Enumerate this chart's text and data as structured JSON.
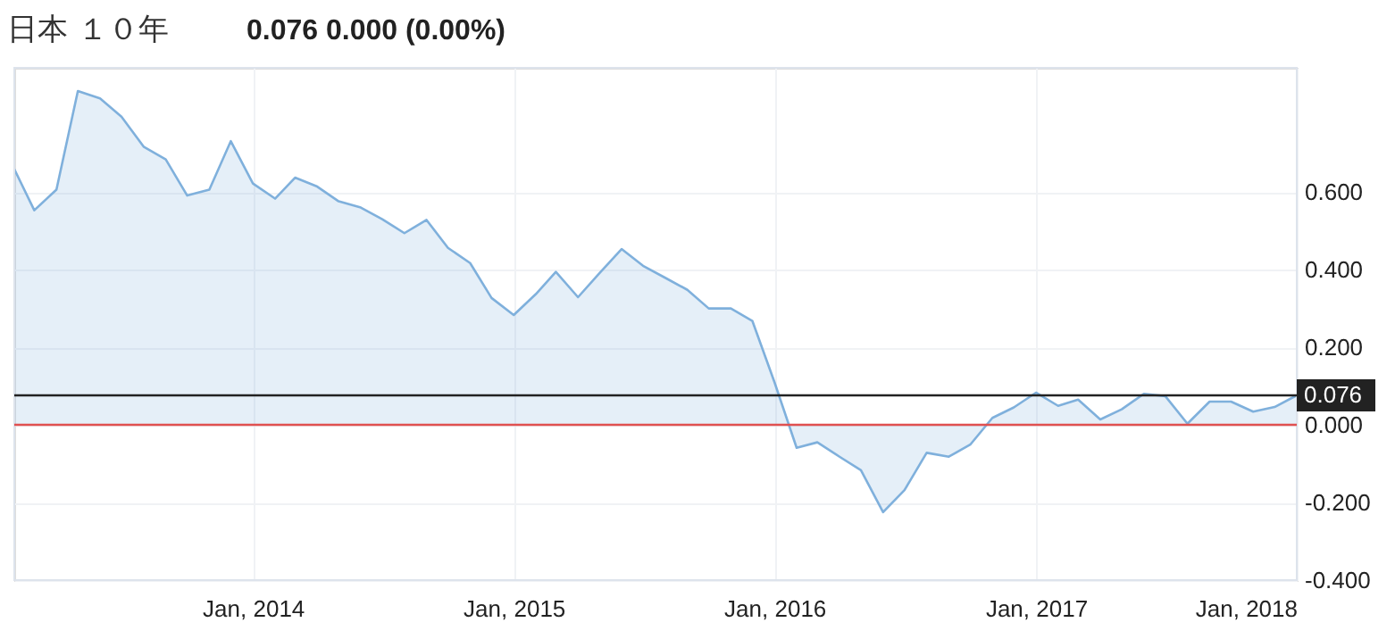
{
  "chart_data": {
    "type": "area",
    "title": "日本 １０年",
    "annotations": [
      "0.076  0.000  (0.00%)"
    ],
    "x": [
      "2013-02",
      "2013-03",
      "2013-04",
      "2013-05",
      "2013-06",
      "2013-07",
      "2013-08",
      "2013-09",
      "2013-10",
      "2013-11",
      "2013-12",
      "2014-01",
      "2014-02",
      "2014-03",
      "2014-04",
      "2014-05",
      "2014-06",
      "2014-07",
      "2014-08",
      "2014-09",
      "2014-10",
      "2014-11",
      "2014-12",
      "2015-01",
      "2015-02",
      "2015-03",
      "2015-04",
      "2015-05",
      "2015-06",
      "2015-07",
      "2015-08",
      "2015-09",
      "2015-10",
      "2015-11",
      "2015-12",
      "2016-01",
      "2016-02",
      "2016-03",
      "2016-04",
      "2016-05",
      "2016-06",
      "2016-07",
      "2016-08",
      "2016-09",
      "2016-10",
      "2016-11",
      "2016-12",
      "2017-01",
      "2017-02",
      "2017-03",
      "2017-04",
      "2017-05",
      "2017-06",
      "2017-07",
      "2017-08",
      "2017-09",
      "2017-10",
      "2017-11",
      "2017-12",
      "2018-01"
    ],
    "series": [
      {
        "color": "#7fb0dc",
        "values": [
          0.659,
          0.553,
          0.606,
          0.86,
          0.841,
          0.794,
          0.717,
          0.684,
          0.591,
          0.606,
          0.731,
          0.622,
          0.583,
          0.637,
          0.614,
          0.576,
          0.56,
          0.53,
          0.494,
          0.528,
          0.456,
          0.417,
          0.327,
          0.283,
          0.337,
          0.394,
          0.329,
          0.391,
          0.453,
          0.41,
          0.379,
          0.348,
          0.3,
          0.3,
          0.268,
          0.11,
          -0.059,
          -0.045,
          -0.082,
          -0.117,
          -0.225,
          -0.168,
          -0.072,
          -0.082,
          -0.051,
          0.018,
          0.045,
          0.083,
          0.049,
          0.065,
          0.014,
          0.04,
          0.08,
          0.074,
          0.003,
          0.06,
          0.06,
          0.034,
          0.046,
          0.076
        ]
      }
    ],
    "xlim": [
      "2013-02",
      "2018-01"
    ],
    "xticks": [
      {
        "value": "2014-01",
        "label": "Jan, 2014"
      },
      {
        "value": "2015-01",
        "label": "Jan, 2015"
      },
      {
        "value": "2016-01",
        "label": "Jan, 2016"
      },
      {
        "value": "2017-01",
        "label": "Jan, 2017"
      },
      {
        "value": "2018-01",
        "label": "Jan, 2018"
      }
    ],
    "ylim": [
      -0.4,
      0.92
    ],
    "yticks": [
      {
        "value": -0.4,
        "label": "-0.400"
      },
      {
        "value": -0.2,
        "label": "-0.200"
      },
      {
        "value": 0,
        "label": "0.000"
      },
      {
        "value": 0.2,
        "label": "0.200"
      },
      {
        "value": 0.4,
        "label": "0.400"
      },
      {
        "value": 0.6,
        "label": "0.600"
      }
    ],
    "ref_lines": [
      {
        "axis": "y",
        "value": 0,
        "color": "#e05050"
      },
      {
        "axis": "y",
        "value": 0.076,
        "label": "0.076",
        "color": "#222222"
      }
    ],
    "grid": true,
    "marker": "none"
  }
}
